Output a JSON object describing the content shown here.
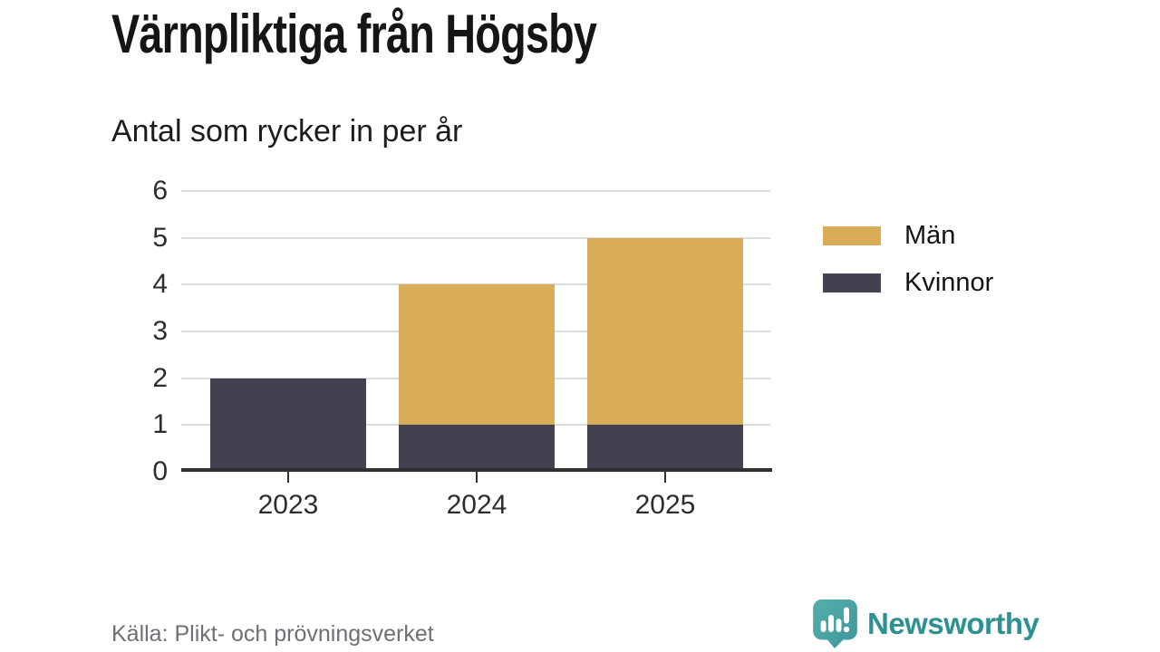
{
  "header": {
    "title": "Värnpliktiga från Högsby",
    "subtitle": "Antal som rycker in per år"
  },
  "chart_data": {
    "type": "bar",
    "stacked": true,
    "title": "Värnpliktiga från Högsby",
    "subtitle": "Antal som rycker in per år",
    "categories": [
      "2023",
      "2024",
      "2025"
    ],
    "series": [
      {
        "name": "Män",
        "color": "#D9AC58",
        "values": [
          0,
          3,
          4
        ]
      },
      {
        "name": "Kvinnor",
        "color": "#434150",
        "values": [
          2,
          1,
          1
        ]
      }
    ],
    "stack_order_bottom_to_top": [
      "Kvinnor",
      "Män"
    ],
    "totals": [
      2,
      4,
      5
    ],
    "xlabel": "",
    "ylabel": "",
    "ylim": [
      0,
      6
    ],
    "yticks": [
      0,
      1,
      2,
      3,
      4,
      5,
      6
    ],
    "grid": true,
    "legend_position": "right"
  },
  "legend": {
    "items": [
      {
        "label": "Män",
        "color": "#D9AC58"
      },
      {
        "label": "Kvinnor",
        "color": "#434150"
      }
    ]
  },
  "footer": {
    "source": "Källa: Plikt- och prövningsverket"
  },
  "branding": {
    "name": "Newsworthy",
    "text_color": "#2E9191",
    "icon_color": "#4AA5A2"
  },
  "colors": {
    "grid": "#dcdcdc",
    "axis": "#303030",
    "tick_text": "#2d2d2d"
  }
}
